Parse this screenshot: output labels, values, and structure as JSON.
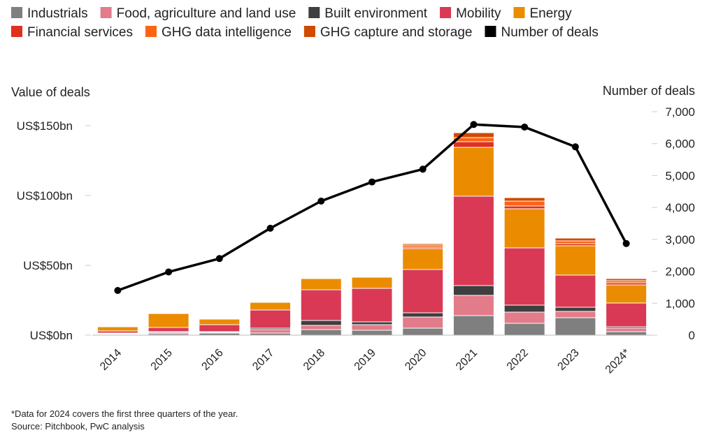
{
  "chart_data": {
    "type": "bar",
    "stacked": true,
    "categories": [
      "2014",
      "2015",
      "2016",
      "2017",
      "2018",
      "2019",
      "2020",
      "2021",
      "2022",
      "2023",
      "2024*"
    ],
    "left_axis": {
      "title": "Value of deals",
      "ticks": [
        {
          "value": 0,
          "label": "US$0bn"
        },
        {
          "value": 50,
          "label": "US$50bn"
        },
        {
          "value": 100,
          "label": "US$100bn"
        },
        {
          "value": 150,
          "label": "US$150bn"
        }
      ],
      "range": [
        0,
        160
      ]
    },
    "right_axis": {
      "title": "Number of deals",
      "ticks": [
        {
          "value": 0,
          "label": "0"
        },
        {
          "value": 1000,
          "label": "1,000"
        },
        {
          "value": 2000,
          "label": "2,000"
        },
        {
          "value": 3000,
          "label": "3,000"
        },
        {
          "value": 4000,
          "label": "4,000"
        },
        {
          "value": 5000,
          "label": "5,000"
        },
        {
          "value": 6000,
          "label": "6,000"
        },
        {
          "value": 7000,
          "label": "7,000"
        }
      ],
      "range": [
        0,
        7000
      ]
    },
    "series": [
      {
        "name": "Industrials",
        "color": "#7f7f7f",
        "values": [
          0.5,
          1,
          1.5,
          1.5,
          4,
          3.5,
          5,
          14,
          8.5,
          12.5,
          2.5
        ]
      },
      {
        "name": "Food, agriculture and land use",
        "color": "#e27b8a",
        "values": [
          0.5,
          1,
          0.5,
          2.5,
          3,
          4,
          8,
          14.5,
          8,
          4.5,
          2.5
        ]
      },
      {
        "name": "Built environment",
        "color": "#3f3f3f",
        "values": [
          0.5,
          0.5,
          0.5,
          1,
          3.5,
          2,
          3,
          7,
          5,
          3,
          1
        ]
      },
      {
        "name": "Mobility",
        "color": "#d93954",
        "values": [
          1.5,
          3,
          5,
          13,
          22,
          24,
          31,
          64,
          41,
          23,
          17
        ]
      },
      {
        "name": "Energy",
        "color": "#eb8c00",
        "values": [
          3,
          10,
          4,
          5.5,
          8,
          8,
          15,
          35,
          28,
          21,
          13
        ]
      },
      {
        "name": "Financial services",
        "color": "#e0301e",
        "values": [
          0.5,
          0.5,
          0.5,
          0.5,
          0.5,
          0.5,
          1,
          4,
          2,
          1.5,
          1.5
        ]
      },
      {
        "name": "GHG data intelligence",
        "color": "#fd6412",
        "values": [
          0.5,
          0.5,
          0.3,
          0.5,
          0.5,
          0.5,
          1.5,
          3,
          3.5,
          2,
          1.5
        ]
      },
      {
        "name": "GHG capture and storage",
        "color": "#d04a02",
        "values": [
          0.3,
          0.3,
          0.2,
          0.5,
          0.5,
          0.5,
          1,
          3.5,
          2.5,
          2,
          1.5
        ]
      }
    ],
    "line_series": {
      "name": "Number of deals",
      "color": "#000000",
      "values": [
        1400,
        1980,
        2400,
        3350,
        4200,
        4800,
        5200,
        6600,
        6520,
        5900,
        2870
      ]
    },
    "legend_position": "top",
    "grid": false
  },
  "footnote": "*Data for 2024 covers the first three quarters of the year.",
  "source": "Source: Pitchbook, PwC analysis"
}
